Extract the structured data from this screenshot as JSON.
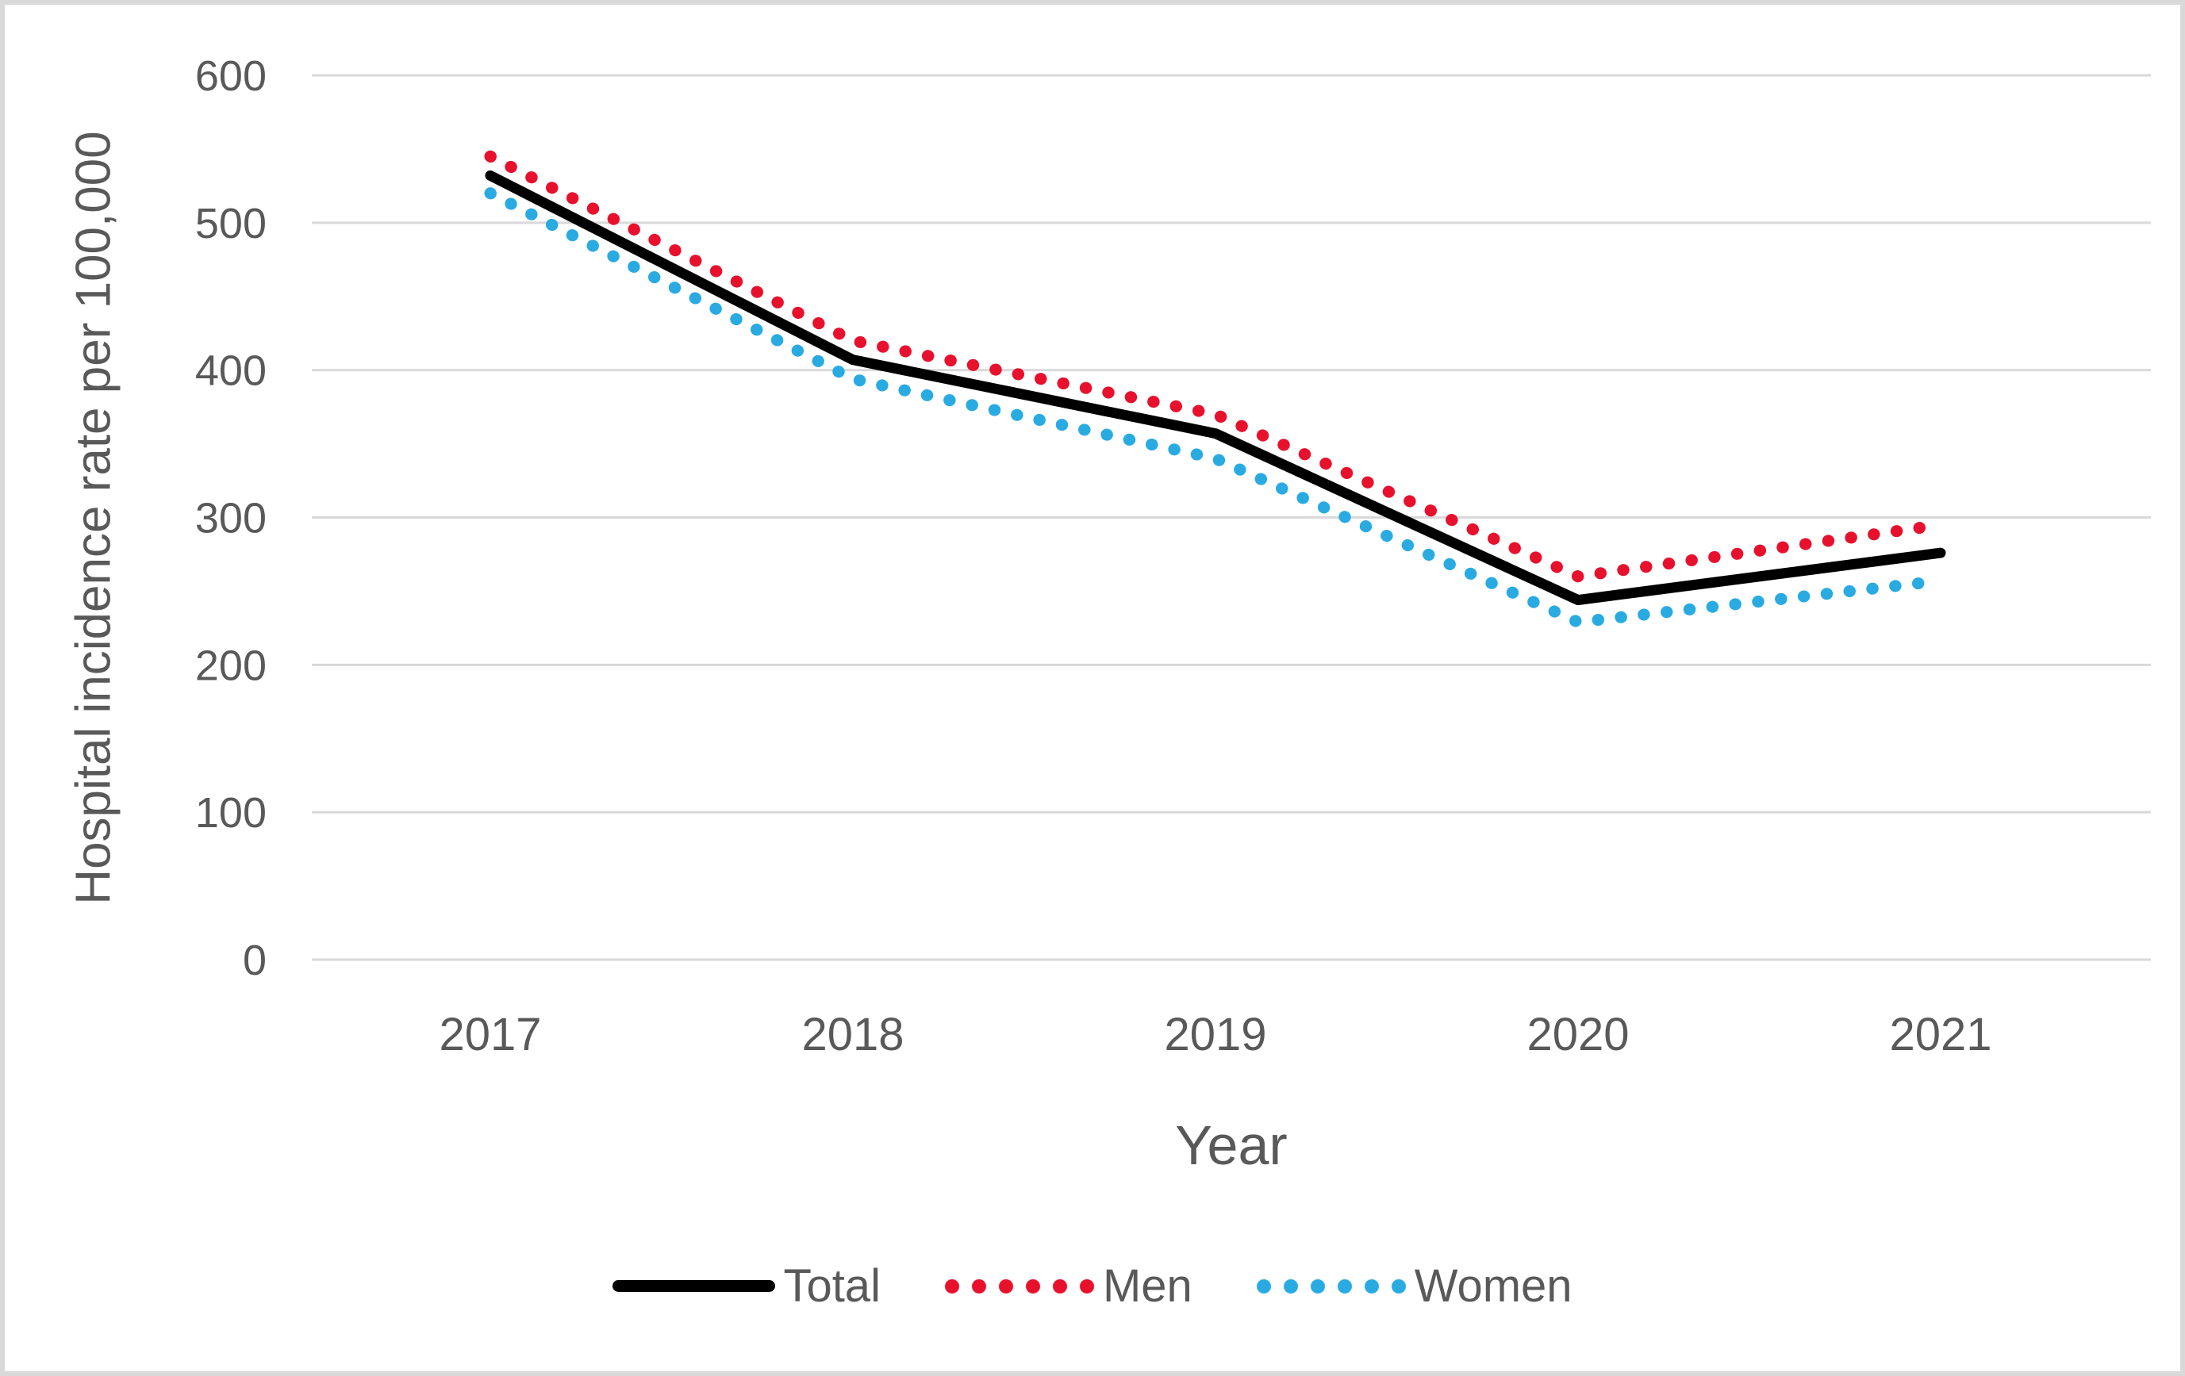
{
  "frame": {
    "background_color": "#ffffff",
    "border_color": "#d9d9d9",
    "gridline_color": "#d9d9d9",
    "text_color": "#595959"
  },
  "chart_data": {
    "type": "line",
    "title": "",
    "xlabel": "Year",
    "ylabel": "Hospital incidence rate per 100,000",
    "categories": [
      "2017",
      "2018",
      "2019",
      "2020",
      "2021"
    ],
    "series": [
      {
        "name": "Total",
        "color": "#000000",
        "style": "solid",
        "values": [
          532,
          407,
          357,
          244,
          276
        ]
      },
      {
        "name": "Men",
        "color": "#e8112d",
        "style": "dotted",
        "values": [
          545,
          420,
          370,
          260,
          295
        ]
      },
      {
        "name": "Women",
        "color": "#29abe2",
        "style": "dotted",
        "values": [
          520,
          394,
          340,
          229,
          257
        ]
      }
    ],
    "ylim": [
      0,
      600
    ],
    "yticks": [
      600,
      500,
      400,
      300,
      200,
      100,
      0
    ],
    "grid": true,
    "legend_position": "bottom"
  }
}
